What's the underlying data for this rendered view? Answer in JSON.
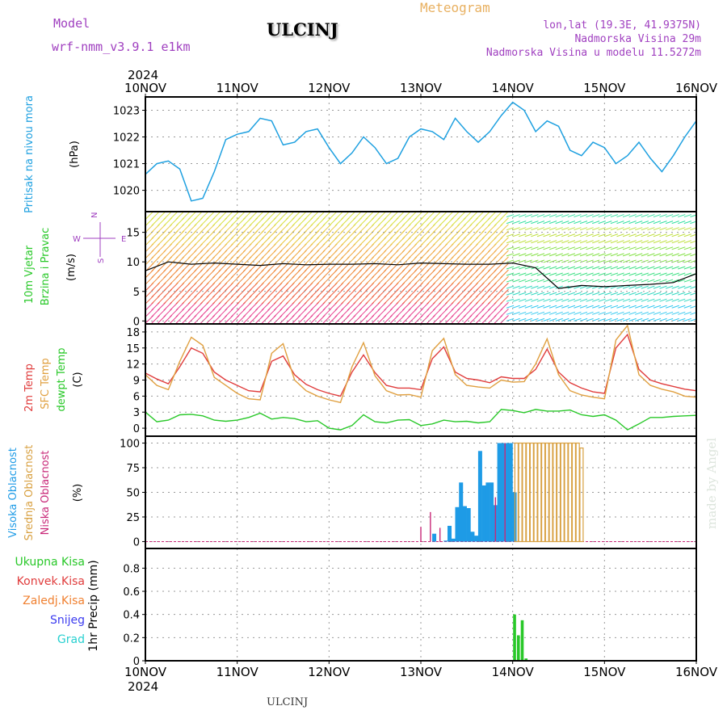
{
  "header": {
    "model_label": "Model",
    "model_name": "wrf-nmm_v3.9.1 e1km",
    "title": "ULCINJ",
    "meteogram": "Meteogram",
    "lonlat": "lon,lat (19.3E, 41.9375N)",
    "elevation": "Nadmorska Visina 29m",
    "model_elevation": "Nadmorska Visina u modelu 11.5272m"
  },
  "time_axis": {
    "year": "2024",
    "labels": [
      "10NOV",
      "11NOV",
      "12NOV",
      "13NOV",
      "14NOV",
      "15NOV",
      "16NOV"
    ]
  },
  "footer": "ULCINJ",
  "watermark": "made by Angel",
  "colors": {
    "pressure": "#1ea0e0",
    "temp2m": "#e03c3c",
    "sfc_temp": "#e0a040",
    "dewpoint": "#28c828",
    "high_cloud": "#1e9be6",
    "mid_cloud": "#d8a040",
    "low_cloud": "#c82878",
    "precip": "#28c828",
    "wind_speed": "#000000"
  },
  "chart_data": [
    {
      "type": "line",
      "panel": "pressure",
      "ylabel_left": "Pritisak na nivou mora",
      "unit": "(hPa)",
      "ylim": [
        1019.2,
        1023.5
      ],
      "yticks": [
        1020,
        1021,
        1022,
        1023
      ],
      "grid": true,
      "x_hours": [
        0,
        3,
        6,
        9,
        12,
        15,
        18,
        21,
        24,
        27,
        30,
        33,
        36,
        39,
        42,
        45,
        48,
        51,
        54,
        57,
        60,
        63,
        66,
        69,
        72,
        75,
        78,
        81,
        84,
        87,
        90,
        93,
        96,
        99,
        102,
        105,
        108,
        111,
        114,
        117,
        120,
        123,
        126,
        129,
        132,
        135,
        138,
        141,
        144
      ],
      "series": [
        {
          "values": [
            1020.6,
            1021.0,
            1021.1,
            1020.8,
            1019.6,
            1019.7,
            1020.7,
            1021.9,
            1022.1,
            1022.2,
            1022.7,
            1022.6,
            1021.7,
            1021.8,
            1022.2,
            1022.3,
            1021.6,
            1021.0,
            1021.4,
            1022.0,
            1021.6,
            1021.0,
            1021.2,
            1022.0,
            1022.3,
            1022.2,
            1021.9,
            1022.7,
            1022.2,
            1021.8,
            1022.2,
            1022.8,
            1023.3,
            1023.0,
            1022.2,
            1022.6,
            1022.4,
            1021.5,
            1021.3,
            1021.8,
            1021.6,
            1021.0,
            1021.3,
            1021.8,
            1021.2,
            1020.7,
            1021.3,
            1022.0,
            1022.6
          ]
        }
      ]
    },
    {
      "type": "line",
      "panel": "wind",
      "ylabel_left": [
        "10m Vjetar",
        "Brzina i Pravac"
      ],
      "unit": "(m/s)",
      "compass": "N E S W",
      "ylim": [
        -0.5,
        18.5
      ],
      "yticks": [
        0,
        5,
        10,
        15
      ],
      "grid": true,
      "x_hours": [
        0,
        6,
        12,
        18,
        24,
        30,
        36,
        42,
        48,
        54,
        60,
        66,
        72,
        78,
        84,
        90,
        96,
        102,
        108,
        114,
        120,
        126,
        132,
        138,
        144
      ],
      "series": [
        {
          "name": "speed",
          "values": [
            8.5,
            10.0,
            9.6,
            9.8,
            9.6,
            9.4,
            9.7,
            9.5,
            9.6,
            9.6,
            9.7,
            9.5,
            9.8,
            9.7,
            9.6,
            9.6,
            9.8,
            9.0,
            5.5,
            6.0,
            5.8,
            6.0,
            6.2,
            6.5,
            8.0
          ]
        }
      ],
      "direction_bands": [
        {
          "from_hour": 0,
          "to_hour": 94,
          "direction": "SE"
        },
        {
          "from_hour": 94,
          "to_hour": 144,
          "direction": "NW"
        }
      ]
    },
    {
      "type": "line",
      "panel": "temperature",
      "ylabel_left": [
        "2m Temp",
        "SFC Temp",
        "dewpt Temp"
      ],
      "unit": "(C)",
      "ylim": [
        -1.5,
        19.5
      ],
      "yticks": [
        0,
        3,
        6,
        9,
        12,
        15,
        18
      ],
      "grid": true,
      "x_hours": [
        0,
        3,
        6,
        9,
        12,
        15,
        18,
        21,
        24,
        27,
        30,
        33,
        36,
        39,
        42,
        45,
        48,
        51,
        54,
        57,
        60,
        63,
        66,
        69,
        72,
        75,
        78,
        81,
        84,
        87,
        90,
        93,
        96,
        99,
        102,
        105,
        108,
        111,
        114,
        117,
        120,
        123,
        126,
        129,
        132,
        135,
        138,
        141,
        144
      ],
      "series": [
        {
          "name": "2m Temp",
          "values": [
            10.3,
            9.2,
            8.3,
            11.5,
            15.0,
            14.0,
            10.5,
            9.0,
            8.0,
            7.0,
            6.8,
            12.5,
            13.5,
            10.0,
            8.2,
            7.2,
            6.5,
            6.0,
            10.5,
            13.7,
            10.4,
            8.0,
            7.5,
            7.5,
            7.2,
            13.0,
            15.2,
            10.5,
            9.3,
            9.0,
            8.5,
            9.6,
            9.3,
            9.3,
            11.0,
            14.8,
            10.5,
            8.5,
            7.5,
            6.8,
            6.5,
            15.0,
            17.5,
            11.0,
            9.0,
            8.3,
            7.8,
            7.3,
            7.0
          ]
        },
        {
          "name": "SFC Temp",
          "values": [
            10.0,
            8.0,
            7.2,
            12.5,
            17.0,
            15.5,
            9.5,
            8.0,
            6.5,
            5.5,
            5.3,
            14.0,
            15.8,
            9.0,
            7.0,
            6.0,
            5.3,
            4.8,
            11.5,
            16.0,
            9.8,
            7.0,
            6.2,
            6.3,
            5.8,
            14.5,
            16.8,
            10.0,
            8.0,
            7.7,
            7.5,
            9.0,
            8.6,
            8.7,
            12.0,
            16.7,
            10.0,
            7.0,
            6.2,
            5.8,
            5.5,
            16.5,
            19.2,
            10.0,
            8.0,
            7.3,
            6.8,
            6.0,
            5.8
          ]
        },
        {
          "name": "dewpt Temp",
          "values": [
            3.0,
            1.2,
            1.5,
            2.5,
            2.6,
            2.3,
            1.5,
            1.3,
            1.5,
            2.0,
            2.8,
            1.7,
            2.0,
            1.8,
            1.2,
            1.4,
            0.0,
            -0.3,
            0.5,
            2.5,
            1.2,
            1.0,
            1.5,
            1.6,
            0.5,
            0.8,
            1.5,
            1.2,
            1.3,
            1.0,
            1.2,
            3.5,
            3.3,
            2.9,
            3.5,
            3.2,
            3.2,
            3.4,
            2.5,
            2.2,
            2.5,
            1.5,
            -0.3,
            0.8,
            2.0,
            2.0,
            2.2,
            2.3,
            2.4
          ]
        }
      ]
    },
    {
      "type": "bar",
      "panel": "cloud",
      "ylabel_left": [
        "Visoka Oblacnost",
        "Srednja Oblacnost",
        "Niska Oblacnost"
      ],
      "unit": "(%)",
      "ylim": [
        -7,
        107
      ],
      "yticks": [
        0,
        25,
        50,
        75,
        100
      ],
      "grid": true,
      "series": [
        {
          "name": "Visoka Oblacnost",
          "x_hours": [
            75.5,
            78.5,
            79.5,
            80.5,
            81.5,
            82.5,
            83.5,
            84.5,
            85.5,
            86.5,
            87.5,
            88.5,
            89.5,
            90.5,
            91.5,
            92.5,
            93.5,
            94.5,
            95.5,
            96.5
          ],
          "values": [
            8,
            1,
            16,
            3,
            35,
            60,
            36,
            34,
            10,
            6,
            92,
            57,
            60,
            60,
            37,
            100,
            100,
            100,
            100,
            50
          ]
        },
        {
          "name": "Srednja Oblacnost",
          "x_hours": [
            97,
            98,
            99,
            100,
            101,
            102,
            103,
            104,
            105,
            106,
            107,
            108,
            109,
            110,
            111,
            112,
            113,
            114
          ],
          "values": [
            100,
            100,
            100,
            100,
            100,
            100,
            100,
            100,
            100,
            100,
            100,
            100,
            100,
            100,
            100,
            100,
            100,
            95
          ]
        },
        {
          "name": "Niska Oblacnost",
          "x_hours": [
            72,
            74.5,
            77,
            91.5,
            94
          ],
          "values": [
            15,
            30,
            14,
            45,
            100
          ]
        }
      ]
    },
    {
      "type": "bar",
      "panel": "precip",
      "ylabel_left": [
        "Ukupna Kisa",
        "Konvek.Kisa",
        "Zaledj.Kisa",
        "Snijeg",
        "Grad"
      ],
      "legend_colors": [
        "#28c828",
        "#e03c3c",
        "#f08030",
        "#3c3cf0",
        "#28d0d0"
      ],
      "unit": "1hr Precip (mm)",
      "ylim": [
        0,
        0.97
      ],
      "yticks": [
        0,
        0.2,
        0.4,
        0.6,
        0.8
      ],
      "grid": true,
      "series": [
        {
          "name": "Ukupna Kisa",
          "x_hours": [
            96.5,
            97.5,
            98.5,
            99.5
          ],
          "values": [
            0.4,
            0.22,
            0.35,
            0.02
          ]
        }
      ]
    }
  ]
}
